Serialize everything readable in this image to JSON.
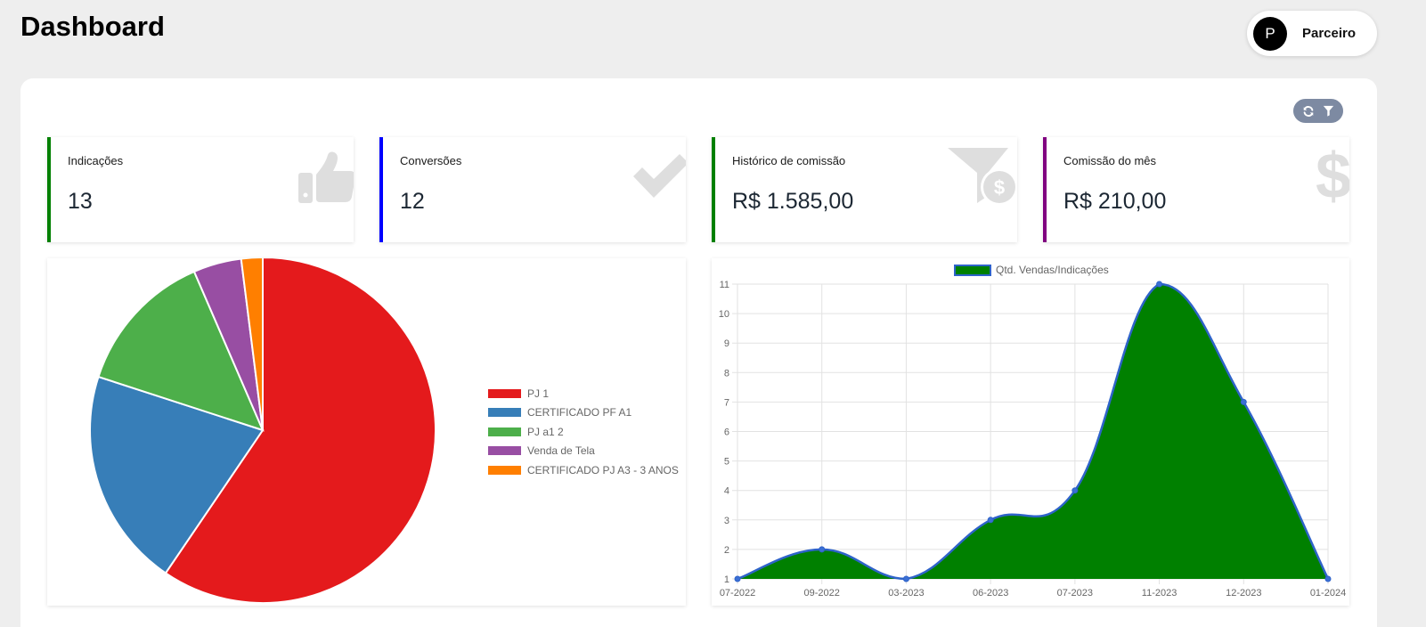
{
  "header": {
    "title": "Dashboard",
    "user": {
      "avatar_letter": "P",
      "name": "Parceiro"
    }
  },
  "toolbar": {
    "refresh_icon": "refresh-icon",
    "filter_icon": "filter-icon"
  },
  "stats": [
    {
      "label": "Indicações",
      "value": "13",
      "accent": "#008000",
      "icon": "thumbs-up-icon"
    },
    {
      "label": "Conversões",
      "value": "12",
      "accent": "#0000ff",
      "icon": "check-icon"
    },
    {
      "label": "Histórico de comissão",
      "value": "R$ 1.585,00",
      "accent": "#008000",
      "icon": "funnel-dollar-icon"
    },
    {
      "label": "Comissão do mês",
      "value": "R$ 210,00",
      "accent": "#800080",
      "icon": "dollar-icon"
    }
  ],
  "chart_data": [
    {
      "type": "pie",
      "categories": [
        "PJ 1",
        "CERTIFICADO PF A1",
        "PJ a1 2",
        "Venda de Tela",
        "CERTIFICADO PJ A3 - 3 ANOS"
      ],
      "values": [
        59.5,
        20.5,
        13.5,
        4.5,
        2.0
      ],
      "colors": [
        "#e41a1c",
        "#377eb8",
        "#4daf4a",
        "#984ea3",
        "#ff7f00"
      ],
      "legend_position": "right"
    },
    {
      "type": "area",
      "series": [
        {
          "name": "Qtd. Vendas/Indicações",
          "values": [
            1,
            2,
            1,
            3,
            4,
            11,
            7,
            1
          ],
          "fill": "#008000",
          "stroke": "#2e63c9"
        }
      ],
      "categories": [
        "07-2022",
        "09-2022",
        "03-2023",
        "06-2023",
        "07-2023",
        "11-2023",
        "12-2023",
        "01-2024"
      ],
      "ylim": [
        1,
        11
      ],
      "yticks": [
        1,
        2,
        3,
        4,
        5,
        6,
        7,
        8,
        9,
        10,
        11
      ],
      "grid": true,
      "legend_position": "top"
    }
  ]
}
